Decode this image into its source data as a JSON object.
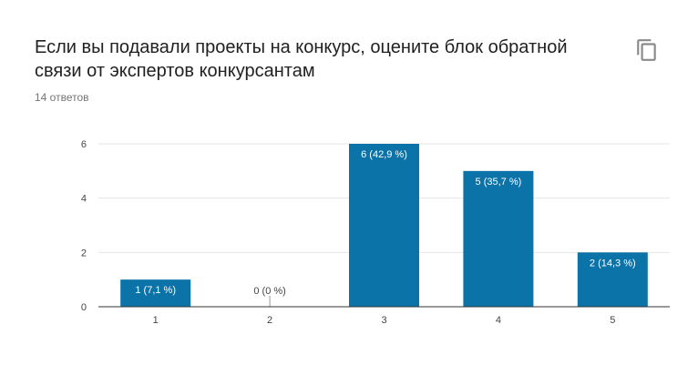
{
  "question": {
    "title_lines": [
      "Если вы подавали проекты на конкурс, оцените блок обратной",
      "связи от экспертов конкурсантам"
    ],
    "response_count": "14 ответов"
  },
  "icons": {
    "copy": "copy-icon"
  },
  "colors": {
    "bar": "#0b73a8",
    "grid": "#e6e6e6",
    "axis": "#333333",
    "label_inside": "#ffffff",
    "label_outside": "#444444",
    "tick": "#444444"
  },
  "chart_data": {
    "type": "bar",
    "categories": [
      "1",
      "2",
      "3",
      "4",
      "5"
    ],
    "values": [
      1,
      0,
      6,
      5,
      2
    ],
    "data_labels": [
      "1 (7,1 %)",
      "0 (0 %)",
      "6 (42,9 %)",
      "5 (35,7 %)",
      "2 (14,3 %)"
    ],
    "ylim": [
      0,
      6
    ],
    "yticks": [
      "0",
      "2",
      "4",
      "6"
    ],
    "ytick_values": [
      0,
      2,
      4,
      6
    ],
    "grid": true,
    "xlabel": "",
    "ylabel": ""
  }
}
